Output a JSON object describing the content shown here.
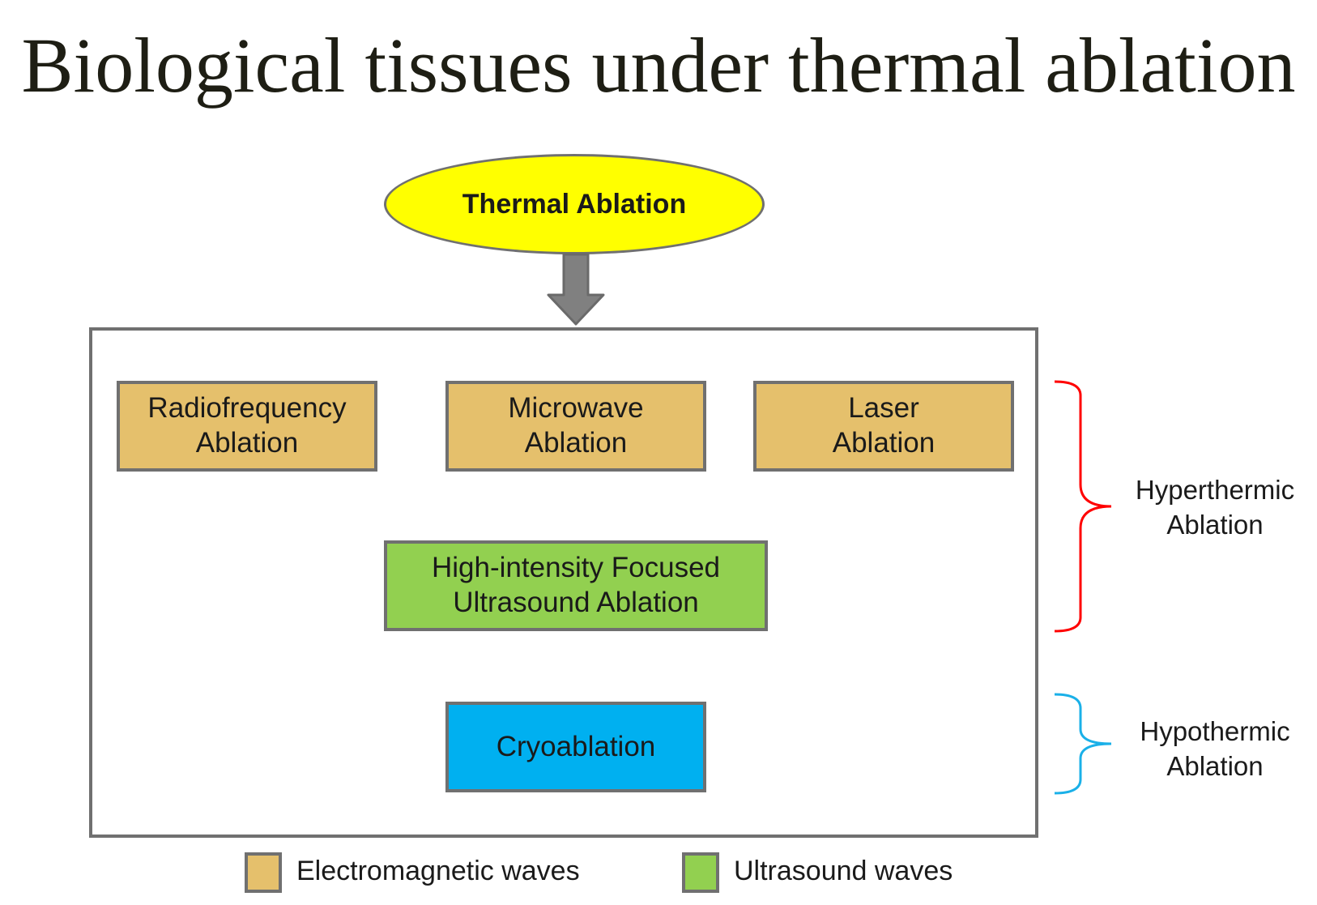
{
  "title": "Biological tissues under thermal ablation",
  "root": {
    "label": "Thermal Ablation",
    "color": "#ffff00"
  },
  "methods": {
    "radiofrequency": {
      "label_line1": "Radiofrequency",
      "label_line2": "Ablation"
    },
    "microwave": {
      "label_line1": "Microwave",
      "label_line2": "Ablation"
    },
    "laser": {
      "label_line1": "Laser",
      "label_line2": "Ablation"
    },
    "hifu": {
      "label_line1": "High-intensity Focused",
      "label_line2": "Ultrasound Ablation"
    },
    "cryo": {
      "label": "Cryoablation"
    }
  },
  "groups": {
    "hyperthermic": {
      "label_line1": "Hyperthermic",
      "label_line2": "Ablation",
      "bracket_color": "#ff0000"
    },
    "hypothermic": {
      "label_line1": "Hypothermic",
      "label_line2": "Ablation",
      "bracket_color": "#1ab0e8"
    }
  },
  "legend": {
    "electromagnetic": {
      "label": "Electromagnetic waves",
      "color": "#e5c06c"
    },
    "ultrasound": {
      "label": "Ultrasound waves",
      "color": "#92d050"
    }
  },
  "colors": {
    "cryo": "#00b0f0",
    "arrow": "#808080",
    "border": "#707070"
  }
}
